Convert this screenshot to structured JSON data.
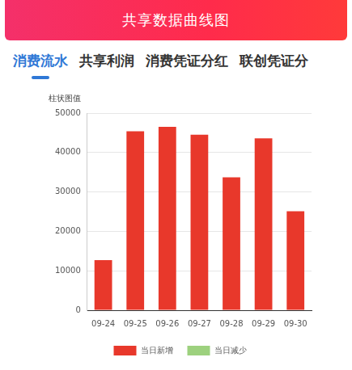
{
  "header": {
    "title": "共享数据曲线图"
  },
  "tabs": [
    {
      "label": "消费流水",
      "active": true
    },
    {
      "label": "共享利润",
      "active": false
    },
    {
      "label": "消费凭证分红",
      "active": false
    },
    {
      "label": "联创凭证分",
      "active": false
    }
  ],
  "chart_data": {
    "type": "bar",
    "y_label": "柱状图值",
    "categories": [
      "09-24",
      "09-25",
      "09-26",
      "09-27",
      "09-28",
      "09-29",
      "09-30"
    ],
    "series": [
      {
        "name": "当日新增",
        "color": "#e8382b",
        "values": [
          12700,
          45400,
          46500,
          44500,
          33700,
          43600,
          25100
        ]
      },
      {
        "name": "当日减少",
        "color": "#9dd17e",
        "values": [
          null,
          null,
          null,
          null,
          null,
          null,
          null
        ]
      }
    ],
    "ylim": [
      0,
      50000
    ],
    "yticks": [
      0,
      10000,
      20000,
      30000,
      40000,
      50000
    ],
    "grid": true,
    "legend": "bottom"
  }
}
